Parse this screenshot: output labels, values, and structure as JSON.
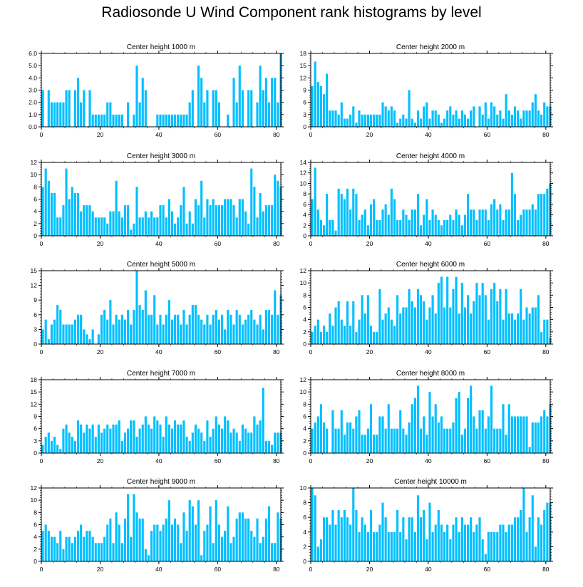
{
  "chart_data": {
    "type": "bar",
    "title": "Radiosonde U Wind Component rank histograms by level",
    "bar_color": "#00BFFF",
    "bin_count": 82,
    "x_ticks": [
      0,
      20,
      40,
      60,
      80
    ],
    "panels": [
      {
        "title": "Center height 1000 m",
        "ylim": [
          0,
          6
        ],
        "yticks": [
          "0.0",
          "1.0",
          "2.0",
          "3.0",
          "4.0",
          "5.0",
          "6.0"
        ],
        "ytick_values": [
          0,
          1,
          2,
          3,
          4,
          5,
          6
        ],
        "values": [
          3,
          0,
          3,
          2,
          2,
          2,
          2,
          2,
          3,
          3,
          0,
          3,
          4,
          2,
          3,
          0,
          3,
          1,
          1,
          1,
          1,
          1,
          2,
          2,
          1,
          1,
          1,
          1,
          0,
          2,
          0,
          1,
          5,
          2,
          4,
          3,
          0,
          0,
          0,
          1,
          1,
          1,
          1,
          1,
          1,
          1,
          1,
          1,
          1,
          1,
          2,
          3,
          0,
          5,
          4,
          2,
          3,
          0,
          3,
          3,
          2,
          0,
          0,
          1,
          0,
          4,
          2,
          5,
          3,
          0,
          3,
          3,
          0,
          2,
          5,
          3,
          4,
          2,
          4,
          4,
          2,
          6
        ]
      },
      {
        "title": "Center height 2000 m",
        "ylim": [
          0,
          18
        ],
        "yticks": [
          "0",
          "3",
          "6",
          "9",
          "12",
          "15",
          "18"
        ],
        "ytick_values": [
          0,
          3,
          6,
          9,
          12,
          15,
          18
        ],
        "values": [
          10,
          16,
          11,
          10,
          8,
          13,
          4,
          4,
          4,
          3,
          6,
          2,
          2,
          3,
          5,
          1,
          4,
          3,
          3,
          3,
          3,
          3,
          3,
          3,
          6,
          5,
          4,
          5,
          4,
          1,
          2,
          3,
          2,
          9,
          2,
          1,
          4,
          2,
          5,
          6,
          2,
          4,
          4,
          3,
          1,
          2,
          4,
          5,
          3,
          4,
          2,
          4,
          3,
          2,
          4,
          5,
          0,
          5,
          3,
          6,
          2,
          6,
          5,
          3,
          4,
          2,
          8,
          4,
          3,
          5,
          4,
          2,
          4,
          4,
          4,
          6,
          8,
          4,
          3,
          6,
          5,
          5
        ]
      },
      {
        "title": "Center height 3000 m",
        "ylim": [
          0,
          12
        ],
        "yticks": [
          "0",
          "2",
          "4",
          "6",
          "8",
          "10",
          "12"
        ],
        "ytick_values": [
          0,
          2,
          4,
          6,
          8,
          10,
          12
        ],
        "values": [
          8,
          11,
          9,
          7,
          7,
          3,
          3,
          5,
          11,
          6,
          8,
          7,
          7,
          4,
          5,
          5,
          5,
          4,
          3,
          3,
          3,
          3,
          2,
          4,
          4,
          9,
          4,
          3,
          5,
          5,
          1,
          2,
          8,
          3,
          3,
          4,
          3,
          4,
          3,
          3,
          5,
          5,
          3,
          6,
          4,
          2,
          3,
          5,
          8,
          2,
          4,
          2,
          6,
          5,
          9,
          3,
          6,
          5,
          6,
          5,
          5,
          5,
          6,
          6,
          6,
          5,
          3,
          6,
          6,
          4,
          2,
          11,
          8,
          3,
          7,
          4,
          5,
          5,
          5,
          10,
          9,
          8
        ]
      },
      {
        "title": "Center height 4000 m",
        "ylim": [
          0,
          14
        ],
        "yticks": [
          "0",
          "2",
          "4",
          "6",
          "8",
          "10",
          "12",
          "14"
        ],
        "ytick_values": [
          0,
          2,
          4,
          6,
          8,
          10,
          12,
          14
        ],
        "values": [
          7,
          13,
          5,
          3,
          2,
          8,
          3,
          3,
          1,
          9,
          8,
          7,
          9,
          5,
          9,
          8,
          3,
          4,
          5,
          2,
          6,
          7,
          3,
          3,
          5,
          6,
          4,
          9,
          7,
          3,
          3,
          5,
          4,
          3,
          5,
          5,
          8,
          2,
          4,
          7,
          3,
          5,
          4,
          3,
          2,
          3,
          3,
          4,
          3,
          5,
          4,
          2,
          4,
          8,
          5,
          5,
          3,
          5,
          5,
          5,
          3,
          6,
          7,
          5,
          6,
          3,
          5,
          5,
          12,
          8,
          3,
          4,
          5,
          5,
          5,
          6,
          5,
          8,
          8,
          8,
          9,
          10
        ]
      },
      {
        "title": "Center height 5000 m",
        "ylim": [
          0,
          15
        ],
        "yticks": [
          "0",
          "3",
          "6",
          "9",
          "12",
          "15"
        ],
        "ytick_values": [
          0,
          3,
          6,
          9,
          12,
          15
        ],
        "values": [
          3,
          5,
          1,
          4,
          5,
          8,
          7,
          4,
          4,
          4,
          4,
          5,
          6,
          6,
          3,
          2,
          1,
          3,
          0,
          2,
          6,
          7,
          5,
          9,
          4,
          6,
          5,
          6,
          5,
          7,
          4,
          7,
          15,
          8,
          7,
          11,
          6,
          6,
          10,
          4,
          6,
          4,
          6,
          9,
          5,
          6,
          6,
          4,
          7,
          4,
          6,
          8,
          8,
          6,
          5,
          4,
          6,
          4,
          6,
          7,
          5,
          6,
          3,
          7,
          6,
          4,
          7,
          6,
          4,
          5,
          6,
          7,
          5,
          4,
          6,
          3,
          7,
          7,
          6,
          11,
          6,
          10
        ]
      },
      {
        "title": "Center height 6000 m",
        "ylim": [
          0,
          12
        ],
        "yticks": [
          "0",
          "2",
          "4",
          "6",
          "8",
          "10",
          "12"
        ],
        "ytick_values": [
          0,
          2,
          4,
          6,
          8,
          10,
          12
        ],
        "values": [
          2,
          3,
          4,
          2,
          3,
          2,
          5,
          3,
          6,
          7,
          4,
          3,
          7,
          3,
          7,
          2,
          4,
          8,
          5,
          8,
          3,
          2,
          2,
          9,
          4,
          5,
          6,
          4,
          3,
          8,
          5,
          6,
          6,
          9,
          7,
          6,
          9,
          8,
          7,
          4,
          6,
          8,
          5,
          10,
          11,
          6,
          11,
          6,
          9,
          11,
          5,
          10,
          6,
          8,
          5,
          7,
          10,
          8,
          10,
          8,
          4,
          9,
          10,
          7,
          9,
          4,
          9,
          5,
          5,
          4,
          5,
          9,
          4,
          6,
          5,
          6,
          6,
          8,
          2,
          4,
          4,
          1
        ]
      },
      {
        "title": "Center height 7000 m",
        "ylim": [
          0,
          18
        ],
        "yticks": [
          "0",
          "3",
          "6",
          "9",
          "12",
          "15",
          "18"
        ],
        "ytick_values": [
          0,
          3,
          6,
          9,
          12,
          15,
          18
        ],
        "values": [
          2,
          4,
          5,
          3,
          4,
          2,
          1,
          6,
          7,
          5,
          4,
          3,
          8,
          7,
          5,
          7,
          6,
          7,
          4,
          7,
          5,
          6,
          7,
          6,
          7,
          7,
          8,
          3,
          5,
          6,
          8,
          8,
          4,
          6,
          7,
          9,
          7,
          6,
          9,
          8,
          7,
          4,
          9,
          7,
          6,
          8,
          7,
          7,
          8,
          4,
          3,
          5,
          7,
          6,
          5,
          3,
          8,
          4,
          6,
          9,
          7,
          6,
          9,
          8,
          5,
          6,
          5,
          3,
          7,
          6,
          5,
          5,
          9,
          7,
          8,
          16,
          3,
          3,
          2,
          5,
          5,
          5
        ]
      },
      {
        "title": "Center height 8000 m",
        "ylim": [
          0,
          12
        ],
        "yticks": [
          "0",
          "2",
          "4",
          "6",
          "8",
          "10",
          "12"
        ],
        "ytick_values": [
          0,
          2,
          4,
          6,
          8,
          10,
          12
        ],
        "values": [
          4,
          5,
          6,
          8,
          5,
          4,
          0,
          7,
          4,
          4,
          7,
          3,
          5,
          5,
          4,
          6,
          7,
          3,
          3,
          4,
          8,
          3,
          3,
          6,
          6,
          4,
          8,
          4,
          4,
          4,
          7,
          4,
          3,
          5,
          8,
          9,
          11,
          4,
          6,
          3,
          10,
          6,
          8,
          5,
          6,
          4,
          4,
          4,
          5,
          9,
          10,
          3,
          4,
          9,
          11,
          6,
          4,
          7,
          7,
          4,
          6,
          11,
          4,
          4,
          4,
          8,
          3,
          8,
          6,
          6,
          6,
          6,
          6,
          6,
          1,
          5,
          5,
          5,
          6,
          7,
          6,
          8
        ]
      },
      {
        "title": "Center height 9000 m",
        "ylim": [
          0,
          12
        ],
        "yticks": [
          "0",
          "2",
          "4",
          "6",
          "8",
          "10",
          "12"
        ],
        "ytick_values": [
          0,
          2,
          4,
          6,
          8,
          10,
          12
        ],
        "values": [
          5,
          6,
          5,
          4,
          4,
          3,
          5,
          2,
          4,
          4,
          3,
          4,
          5,
          6,
          4,
          5,
          5,
          4,
          3,
          3,
          3,
          4,
          6,
          7,
          3,
          8,
          6,
          3,
          7,
          11,
          4,
          11,
          8,
          7,
          7,
          2,
          1,
          5,
          6,
          6,
          5,
          6,
          7,
          10,
          6,
          7,
          6,
          3,
          8,
          5,
          10,
          9,
          6,
          10,
          1,
          5,
          6,
          9,
          3,
          10,
          6,
          4,
          5,
          9,
          3,
          4,
          7,
          8,
          8,
          7,
          7,
          5,
          4,
          7,
          3,
          4,
          7,
          9,
          3,
          3,
          8,
          7
        ]
      },
      {
        "title": "Center height 10000 m",
        "ylim": [
          0,
          10
        ],
        "yticks": [
          "0",
          "2",
          "4",
          "6",
          "8",
          "10"
        ],
        "ytick_values": [
          0,
          2,
          4,
          6,
          8,
          10
        ],
        "values": [
          10,
          9,
          2,
          3,
          6,
          6,
          5,
          7,
          5,
          7,
          6,
          7,
          6,
          5,
          10,
          7,
          4,
          6,
          5,
          4,
          7,
          4,
          4,
          5,
          8,
          6,
          4,
          4,
          4,
          7,
          4,
          6,
          3,
          6,
          6,
          4,
          9,
          6,
          7,
          3,
          8,
          4,
          5,
          7,
          5,
          4,
          5,
          3,
          5,
          6,
          4,
          6,
          5,
          5,
          6,
          4,
          5,
          6,
          3,
          1,
          4,
          4,
          4,
          4,
          5,
          5,
          4,
          5,
          5,
          6,
          6,
          7,
          10,
          4,
          6,
          9,
          2,
          6,
          5,
          7,
          8,
          8
        ]
      }
    ]
  }
}
